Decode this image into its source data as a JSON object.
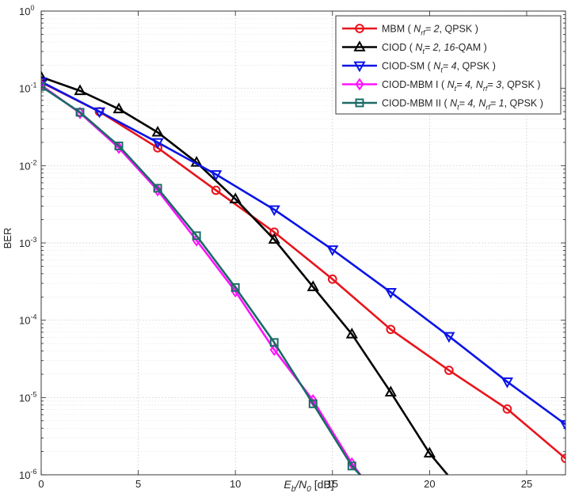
{
  "chart_data": {
    "type": "line",
    "title": "",
    "xlabel": {
      "base1": "E",
      "sub1": "b",
      "slash": "/N",
      "sub2": "0",
      "unit": " [dB]"
    },
    "ylabel": "BER",
    "xlim": [
      0,
      27
    ],
    "ylim": [
      1e-06,
      1
    ],
    "yscale": "log",
    "grid": true,
    "legend_position": "top-right",
    "x_ticks": [
      0,
      5,
      10,
      15,
      20,
      25
    ],
    "y_ticks": [
      {
        "value": 1e-06,
        "base": "10",
        "exp": "-6"
      },
      {
        "value": 1e-05,
        "base": "10",
        "exp": "-5"
      },
      {
        "value": 0.0001,
        "base": "10",
        "exp": "-4"
      },
      {
        "value": 0.001,
        "base": "10",
        "exp": "-3"
      },
      {
        "value": 0.01,
        "base": "10",
        "exp": "-2"
      },
      {
        "value": 0.1,
        "base": "10",
        "exp": "-1"
      },
      {
        "value": 1,
        "base": "10",
        "exp": "0"
      }
    ],
    "series": [
      {
        "name": "MBM ( N_rf = 2, QPSK )",
        "legend": [
          {
            "t": "MBM ( "
          },
          {
            "t": "N",
            "i": true
          },
          {
            "t": "rf",
            "sub": true,
            "i": true
          },
          {
            "t": "= 2",
            "i": true
          },
          {
            "t": ", QPSK )"
          }
        ],
        "color": "#e8141c",
        "marker": "circle",
        "x": [
          0,
          3,
          6,
          9,
          12,
          15,
          18,
          21,
          24,
          27
        ],
        "y": [
          0.12,
          0.05,
          0.017,
          0.0048,
          0.00138,
          0.00034,
          7.6e-05,
          2.25e-05,
          7.1e-06,
          1.63e-06
        ]
      },
      {
        "name": "CIOD ( N_t = 2, 16-QAM )",
        "legend": [
          {
            "t": "CIOD ( "
          },
          {
            "t": "N",
            "i": true
          },
          {
            "t": "t",
            "sub": true,
            "i": true
          },
          {
            "t": "= 2,  16",
            "i": true
          },
          {
            "t": "-QAM )"
          }
        ],
        "color": "#000000",
        "marker": "triangle-up",
        "x": [
          0,
          2,
          4,
          6,
          8,
          10,
          12,
          14,
          16,
          18,
          20,
          21
        ],
        "y": [
          0.14,
          0.093,
          0.054,
          0.027,
          0.011,
          0.0037,
          0.00111,
          0.00027,
          6.6e-05,
          1.17e-05,
          1.9e-06,
          9.5e-07
        ]
      },
      {
        "name": "CIOD-SM ( N_t = 4, QPSK )",
        "legend": [
          {
            "t": "CIOD-SM ( "
          },
          {
            "t": "N",
            "i": true
          },
          {
            "t": "t",
            "sub": true,
            "i": true
          },
          {
            "t": "= 4",
            "i": true
          },
          {
            "t": ", QPSK )"
          }
        ],
        "color": "#0a14e6",
        "marker": "triangle-down",
        "x": [
          0,
          3,
          6,
          9,
          12,
          15,
          18,
          21,
          24,
          27
        ],
        "y": [
          0.122,
          0.05,
          0.02,
          0.0077,
          0.0027,
          0.00082,
          0.00023,
          6.2e-05,
          1.6e-05,
          4.5e-06
        ]
      },
      {
        "name": "CIOD-MBM I ( N_t = 4, N_rf = 3, QPSK )",
        "legend": [
          {
            "t": "CIOD-MBM I ( "
          },
          {
            "t": "N",
            "i": true
          },
          {
            "t": "t",
            "sub": true,
            "i": true
          },
          {
            "t": "= 4,  N",
            "i": true
          },
          {
            "t": "rf",
            "sub": true,
            "i": true
          },
          {
            "t": "= 3",
            "i": true
          },
          {
            "t": ", QPSK )"
          }
        ],
        "color": "#ff12ff",
        "marker": "diamond",
        "x": [
          0,
          2,
          4,
          6,
          8,
          10,
          12,
          14,
          16,
          16.5
        ],
        "y": [
          0.11,
          0.048,
          0.017,
          0.0048,
          0.00108,
          0.000237,
          4.15e-05,
          9.2e-06,
          1.4e-06,
          9.5e-07
        ]
      },
      {
        "name": "CIOD-MBM II ( N_t = 4, N_rf = 1, QPSK )",
        "legend": [
          {
            "t": "CIOD-MBM II ( "
          },
          {
            "t": "N",
            "i": true
          },
          {
            "t": "t",
            "sub": true,
            "i": true
          },
          {
            "t": "= 4,  N",
            "i": true
          },
          {
            "t": "rf",
            "sub": true,
            "i": true
          },
          {
            "t": "= 1",
            "i": true
          },
          {
            "t": ", QPSK )"
          }
        ],
        "color": "#1a6b66",
        "marker": "square",
        "x": [
          0,
          2,
          4,
          6,
          8,
          10,
          12,
          14,
          16,
          16.5
        ],
        "y": [
          0.106,
          0.049,
          0.018,
          0.0051,
          0.00124,
          0.000265,
          5.15e-05,
          8.3e-06,
          1.3e-06,
          9.5e-07
        ]
      }
    ]
  }
}
